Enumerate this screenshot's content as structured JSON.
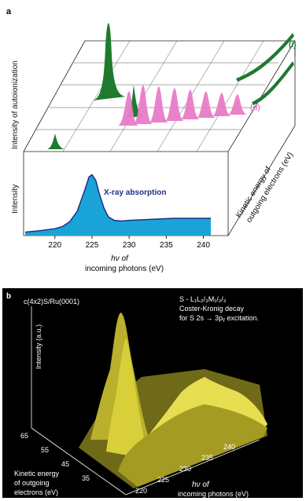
{
  "figure": {
    "panel_a": {
      "label": "a",
      "ylabel_top": "Intensity of autoionization",
      "ylabel_bottom": "Intensity",
      "depth_label_line1": "Kinetic energy of",
      "depth_label_line2": "outgoing electrons (eV)",
      "xaxis_line1": "hν of",
      "xaxis_line2": "incoming photons (eV)",
      "xticks": [
        "220",
        "225",
        "230",
        "235",
        "240"
      ],
      "curve_label": "X-ray absorption",
      "series_tags": [
        "(i)",
        "(d)"
      ],
      "colors": {
        "absorption": "#1aa3d6",
        "absorption_line": "#1d2f8a",
        "green": "#1f7a2e",
        "pink": "#e87cc8",
        "label_blue": "#1d2f8a"
      }
    },
    "panel_b": {
      "label": "b",
      "sample": "c(4x2)S/Ru(0001)",
      "note_line1": "S - L₁L₂/₃M₁/₂/₃",
      "note_line2": "Coster-Kronig decay",
      "note_line3": "for S 2s → 3pᵧ excitation.",
      "zlabel": "Intensity (a.u.)",
      "ylabel_line1": "Kinetic energy",
      "ylabel_line2": "of outgoing",
      "ylabel_line3": "electrons (eV)",
      "xlabel_line1": "hν of",
      "xlabel_line2": "incoming photons (eV)",
      "xticks": [
        "220",
        "225",
        "230",
        "235",
        "240"
      ],
      "yticks": [
        "65",
        "55",
        "45",
        "35"
      ],
      "colors": {
        "background": "#000000",
        "surface": "#d8cf3a",
        "text": "#ffffff"
      }
    }
  },
  "chart_data": [
    {
      "type": "area",
      "panel": "a",
      "x_unit": "eV",
      "xlim": [
        216,
        241
      ],
      "ylim": [
        0,
        1
      ],
      "x": [
        216,
        218,
        220,
        221,
        222,
        223,
        224,
        224.6,
        225,
        225.5,
        226,
        226.6,
        227.2,
        228,
        229,
        230,
        232,
        234,
        236,
        238,
        240,
        241
      ],
      "series": [
        {
          "name": "X-ray absorption",
          "values": [
            0.05,
            0.07,
            0.1,
            0.13,
            0.2,
            0.35,
            0.65,
            0.85,
            0.88,
            0.8,
            0.6,
            0.4,
            0.27,
            0.22,
            0.21,
            0.22,
            0.23,
            0.24,
            0.25,
            0.25,
            0.25,
            0.25
          ]
        }
      ]
    },
    {
      "type": "line",
      "panel": "a",
      "x_unit": "eV",
      "x": [
        220,
        222,
        224,
        225,
        226,
        228,
        230,
        232,
        234,
        236,
        238,
        240
      ],
      "series": [
        {
          "name": "(i)",
          "values": [
            0.02,
            0.05,
            0.25,
            1.0,
            0.55,
            0.18,
            0.1,
            0.1,
            0.1,
            0.12,
            0.12,
            0.12
          ]
        },
        {
          "name": "(d)",
          "values": [
            0.02,
            0.08,
            0.35,
            0.55,
            0.45,
            0.45,
            0.45,
            0.45,
            0.45,
            0.45,
            0.45,
            0.45
          ]
        }
      ]
    },
    {
      "type": "heatmap",
      "panel": "b",
      "x_unit": "eV",
      "y_unit": "eV",
      "x": [
        220,
        225,
        230,
        235,
        240
      ],
      "y": [
        35,
        45,
        55,
        65
      ],
      "z": [
        [
          0.15,
          0.55,
          0.45,
          0.35,
          0.25
        ],
        [
          0.2,
          0.6,
          0.6,
          0.5,
          0.35
        ],
        [
          0.25,
          1.0,
          0.55,
          0.4,
          0.3
        ],
        [
          0.2,
          0.7,
          0.35,
          0.25,
          0.2
        ]
      ]
    }
  ]
}
